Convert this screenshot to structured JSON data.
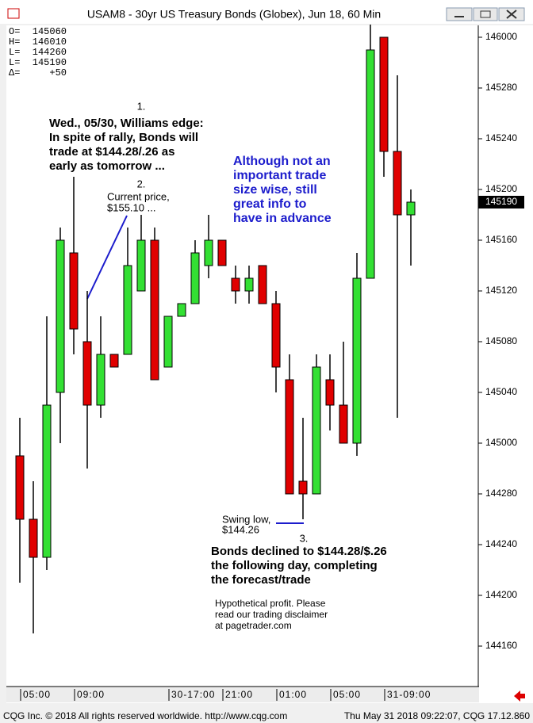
{
  "chart_data": {
    "type": "candlestick",
    "title": "USAM8 - 30yr US Treasury Bonds (Globex), Jun 18, 60 Min",
    "stats": [
      {
        "label": "O=",
        "value": "145060"
      },
      {
        "label": "H=",
        "value": "146010"
      },
      {
        "label": "L=",
        "value": "144260"
      },
      {
        "label": "L=",
        "value": "145190"
      },
      {
        "label": "Δ=",
        "value": "+50"
      }
    ],
    "categories": [
      "05:00",
      null,
      null,
      null,
      "09:00",
      null,
      null,
      null,
      null,
      null,
      null,
      "30-17:00",
      null,
      null,
      null,
      "21:00",
      null,
      null,
      null,
      "01:00",
      null,
      null,
      null,
      "05:00",
      null,
      null,
      null,
      "31-09:00",
      null,
      null
    ],
    "open": [
      144.96875,
      144.8125,
      144.71875,
      145.125,
      145.46875,
      145.25,
      145.09375,
      145.21875,
      145.21875,
      145.375,
      145.5,
      145.1875,
      145.3125,
      145.34375,
      145.4375,
      145.5,
      145.40625,
      145.375,
      145.4375,
      145.34375,
      145.15625,
      144.90625,
      144.875,
      145.15625,
      145.09375,
      145.0,
      145.40625,
      146.0,
      145.71875,
      145.5625
    ],
    "high": [
      145.0625,
      144.90625,
      145.3125,
      145.53125,
      145.65625,
      145.375,
      145.3125,
      145.21875,
      145.53125,
      145.5625,
      145.53125,
      145.3125,
      145.34375,
      145.5,
      145.5625,
      145.5,
      145.4375,
      145.4375,
      145.4375,
      145.375,
      145.21875,
      145.0625,
      145.21875,
      145.21875,
      145.25,
      145.46875,
      146.03125,
      146.0,
      145.90625,
      145.625
    ],
    "low": [
      144.65625,
      144.53125,
      144.6875,
      145.0,
      145.21875,
      144.9375,
      145.0625,
      145.1875,
      145.21875,
      145.375,
      145.15625,
      145.1875,
      145.3125,
      145.34375,
      145.40625,
      145.4375,
      145.34375,
      145.34375,
      145.34375,
      145.125,
      144.875,
      144.8125,
      144.875,
      145.03125,
      145.0,
      144.96875,
      145.40625,
      145.65625,
      145.0625,
      145.4375
    ],
    "close": [
      144.8125,
      144.71875,
      145.09375,
      145.5,
      145.28125,
      145.09375,
      145.21875,
      145.1875,
      145.4375,
      145.5,
      145.15625,
      145.3125,
      145.34375,
      145.46875,
      145.5,
      145.4375,
      145.375,
      145.40625,
      145.34375,
      145.1875,
      144.875,
      144.875,
      145.1875,
      145.09375,
      145.0,
      145.40625,
      145.96875,
      145.71875,
      145.5625,
      145.59375
    ],
    "up_color": "#33e033",
    "down_color": "#e00000",
    "ylim": [
      144.40234375,
      146.029296875
    ],
    "yticks": [
      {
        "value": 146.0,
        "label": "146000"
      },
      {
        "value": 145.875,
        "label": "145280"
      },
      {
        "value": 145.75,
        "label": "145240"
      },
      {
        "value": 145.625,
        "label": "145200"
      },
      {
        "value": 145.5,
        "label": "145160"
      },
      {
        "value": 145.375,
        "label": "145120"
      },
      {
        "value": 145.25,
        "label": "145080"
      },
      {
        "value": 145.125,
        "label": "145040"
      },
      {
        "value": 145.0,
        "label": "145000"
      },
      {
        "value": 144.875,
        "label": "144280"
      },
      {
        "value": 144.75,
        "label": "144240"
      },
      {
        "value": 144.625,
        "label": "144200"
      },
      {
        "value": 144.5,
        "label": "144160"
      }
    ],
    "grid": false,
    "current_price": {
      "value": 145.59375,
      "label": "145190"
    },
    "annotations": [
      [
        "1."
      ],
      [
        "Wed., 05/30, Williams edge:",
        "In spite of rally, Bonds will",
        "trade at $144.28/.26 as",
        "early as tomorrow ..."
      ],
      [
        "2."
      ],
      [
        "Current price,",
        "$155.10 ..."
      ],
      [
        "Although not an",
        "important trade",
        "size wise, still",
        "great info to",
        "have in advance"
      ],
      [
        "Swing low,",
        "$144.26"
      ],
      [
        "3."
      ],
      [
        "Bonds declined to $144.28/$.26",
        "the following day, completing",
        "the forecast/trade"
      ],
      [
        "Hypothetical profit.  Please",
        "read our trading disclaimer",
        "at pagetrader.com"
      ]
    ],
    "footer": {
      "left": "CQG Inc. © 2018 All rights reserved worldwide. http://www.cqg.com",
      "right": "Thu May 31 2018 09:22:07, CQG 17.12.860"
    }
  }
}
